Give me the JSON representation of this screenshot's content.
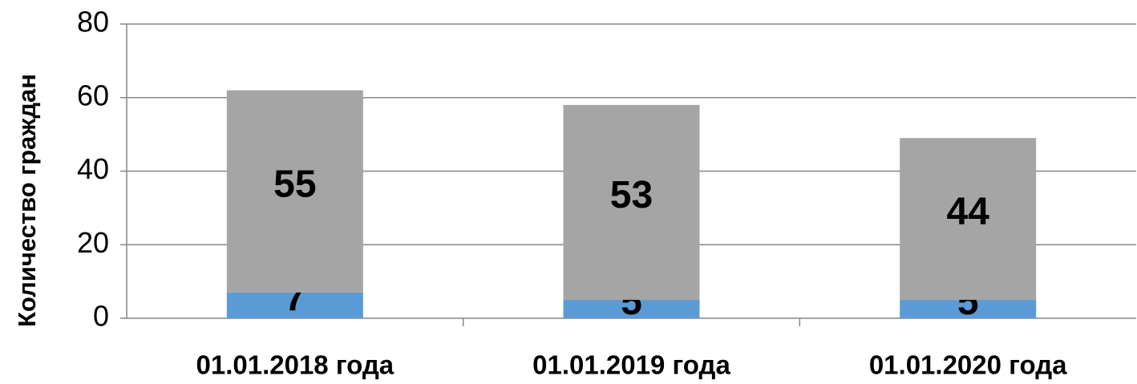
{
  "chart_data": {
    "type": "stacked_bar",
    "y_label": "Количество граждан",
    "categories": [
      "01.01.2018 года",
      "01.01.2019 года",
      "01.01.2020 года"
    ],
    "series": [
      {
        "color": "#5b9bd5",
        "values": [
          7,
          5,
          5
        ]
      },
      {
        "color": "#a5a5a5",
        "values": [
          55,
          53,
          44
        ]
      }
    ],
    "ylim": [
      0,
      80
    ],
    "yticks": [
      0,
      20,
      40,
      60,
      80
    ],
    "grid": true
  }
}
